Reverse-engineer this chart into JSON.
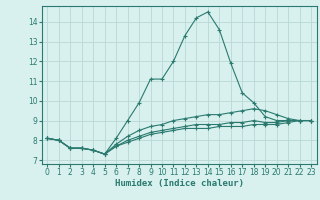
{
  "xlabel": "Humidex (Indice chaleur)",
  "bg_color": "#d8f0ee",
  "grid_color": "#b8d8d4",
  "line_color": "#2a7a6f",
  "xlim": [
    -0.5,
    23.5
  ],
  "ylim": [
    6.8,
    14.8
  ],
  "xticks": [
    0,
    1,
    2,
    3,
    4,
    5,
    6,
    7,
    8,
    9,
    10,
    11,
    12,
    13,
    14,
    15,
    16,
    17,
    18,
    19,
    20,
    21,
    22,
    23
  ],
  "yticks": [
    7,
    8,
    9,
    10,
    11,
    12,
    13,
    14
  ],
  "series": [
    [
      8.1,
      8.0,
      7.6,
      7.6,
      7.5,
      7.3,
      8.1,
      9.0,
      9.9,
      11.1,
      11.1,
      12.0,
      13.3,
      14.2,
      14.5,
      13.6,
      11.9,
      10.4,
      9.9,
      9.2,
      9.0,
      9.0,
      9.0,
      9.0
    ],
    [
      8.1,
      8.0,
      7.6,
      7.6,
      7.5,
      7.3,
      7.8,
      8.2,
      8.5,
      8.7,
      8.8,
      9.0,
      9.1,
      9.2,
      9.3,
      9.3,
      9.4,
      9.5,
      9.6,
      9.5,
      9.3,
      9.1,
      9.0,
      9.0
    ],
    [
      8.1,
      8.0,
      7.6,
      7.6,
      7.5,
      7.3,
      7.7,
      8.0,
      8.2,
      8.4,
      8.5,
      8.6,
      8.7,
      8.8,
      8.8,
      8.8,
      8.9,
      8.9,
      9.0,
      8.9,
      8.9,
      9.0,
      9.0,
      9.0
    ],
    [
      8.1,
      8.0,
      7.6,
      7.6,
      7.5,
      7.3,
      7.7,
      7.9,
      8.1,
      8.3,
      8.4,
      8.5,
      8.6,
      8.6,
      8.6,
      8.7,
      8.7,
      8.7,
      8.8,
      8.8,
      8.8,
      8.9,
      9.0,
      9.0
    ]
  ],
  "marker_sizes": [
    2.5,
    2.5,
    2.5,
    2.5
  ]
}
